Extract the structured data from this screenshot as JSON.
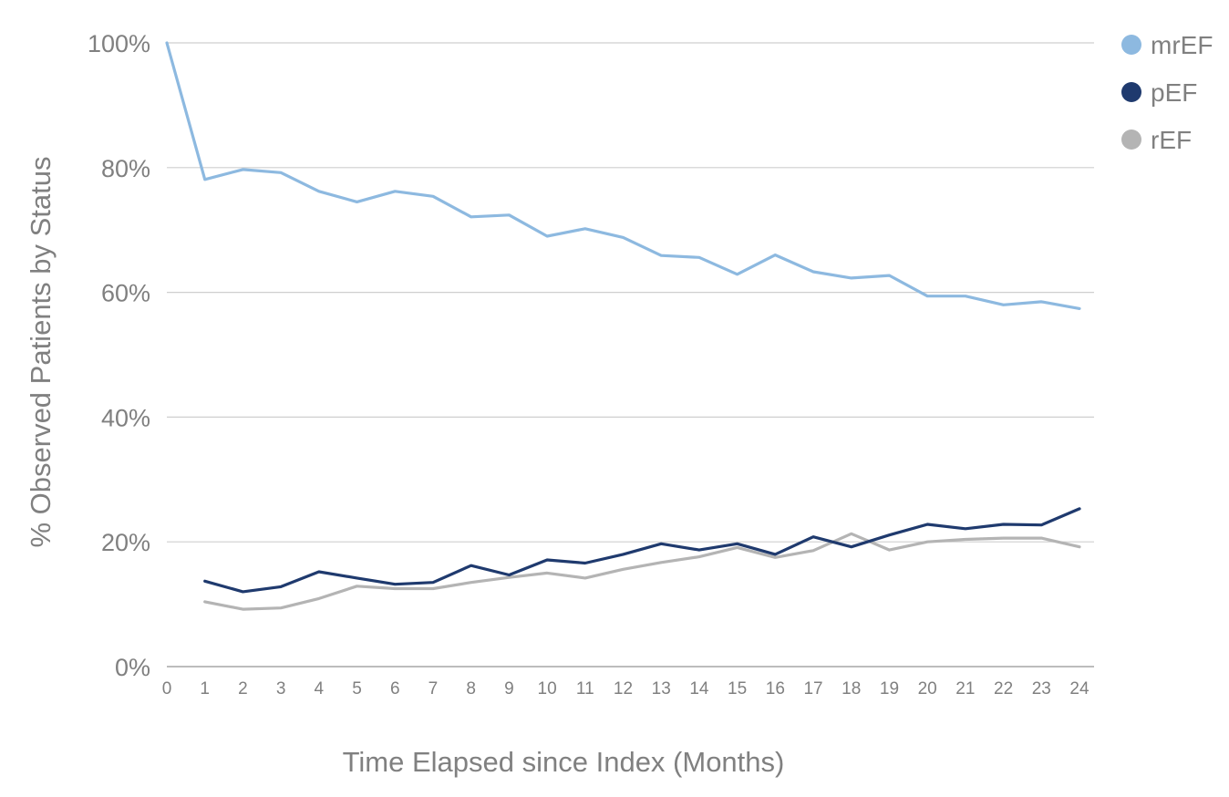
{
  "chart_data": {
    "type": "line",
    "title": "",
    "xlabel": "Time Elapsed since Index (Months)",
    "ylabel": "% Observed Patients by Status",
    "x": [
      0,
      1,
      2,
      3,
      4,
      5,
      6,
      7,
      8,
      9,
      10,
      11,
      12,
      13,
      14,
      15,
      16,
      17,
      18,
      19,
      20,
      21,
      22,
      23,
      24
    ],
    "x_tick_labels": [
      "0",
      "1",
      "2",
      "3",
      "4",
      "5",
      "6",
      "7",
      "8",
      "9",
      "10",
      "11",
      "12",
      "13",
      "14",
      "15",
      "16",
      "17",
      "18",
      "19",
      "20",
      "21",
      "22",
      "23",
      "24"
    ],
    "y_tick_labels": [
      "0%",
      "20%",
      "40%",
      "60%",
      "80%",
      "100%"
    ],
    "y_ticks": [
      0,
      20,
      40,
      60,
      80,
      100
    ],
    "ylim": [
      0,
      100
    ],
    "xlim": [
      0,
      24
    ],
    "grid": true,
    "legend_position": "top-right",
    "series": [
      {
        "name": "mrEF",
        "color": "#8DB9E0",
        "values": [
          100,
          78.1,
          79.7,
          79.2,
          76.2,
          74.5,
          76.2,
          75.4,
          72.1,
          72.4,
          69.0,
          70.2,
          68.8,
          65.9,
          65.6,
          62.9,
          66.0,
          63.3,
          62.3,
          62.7,
          59.4,
          59.4,
          58.0,
          58.5,
          57.4
        ]
      },
      {
        "name": "pEF",
        "color": "#1F3A6E",
        "values": [
          null,
          13.7,
          12.0,
          12.8,
          15.2,
          14.2,
          13.2,
          13.5,
          16.2,
          14.7,
          17.1,
          16.6,
          18.0,
          19.7,
          18.7,
          19.7,
          18.0,
          20.8,
          19.2,
          21.1,
          22.8,
          22.1,
          22.8,
          22.7,
          25.3
        ]
      },
      {
        "name": "rEF",
        "color": "#B4B4B4",
        "values": [
          null,
          10.4,
          9.2,
          9.4,
          10.9,
          12.9,
          12.5,
          12.5,
          13.5,
          14.3,
          15.0,
          14.2,
          15.6,
          16.7,
          17.6,
          19.1,
          17.5,
          18.6,
          21.3,
          18.7,
          20.0,
          20.4,
          20.6,
          20.6,
          19.2
        ]
      }
    ]
  }
}
